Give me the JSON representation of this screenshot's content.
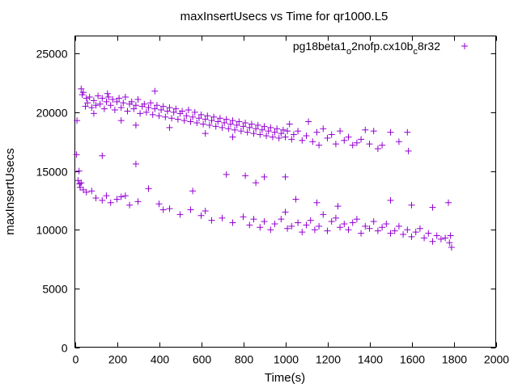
{
  "chart_data": {
    "type": "scatter",
    "title": "maxInsertUsecs vs Time for qr1000.L5",
    "xlabel": "Time(s)",
    "ylabel": "maxInsertUsecs",
    "xlim": [
      0,
      2000
    ],
    "ylim": [
      0,
      26500
    ],
    "xticks": [
      0,
      200,
      400,
      600,
      800,
      1000,
      1200,
      1400,
      1600,
      1800,
      2000
    ],
    "yticks": [
      0,
      5000,
      10000,
      15000,
      20000,
      25000
    ],
    "xtick_labels": [
      "0",
      "200",
      "400",
      "600",
      "800",
      "1000",
      "1200",
      "1400",
      "1600",
      "1800",
      "2000"
    ],
    "ytick_labels": [
      "0",
      "5000",
      "10000",
      "15000",
      "20000",
      "25000"
    ],
    "grid": false,
    "legend_position": "top-right",
    "color": "#9400d3",
    "marker": "plus",
    "series_name": {
      "base": "pg18beta1",
      "sub1": "o",
      "mid": "2nofp.cx10b",
      "sub2": "c",
      "tail": "8r32"
    },
    "series": [
      {
        "name": "pg18beta1_o2nofp.cx10b_c8r32",
        "points": [
          [
            10,
            19300
          ],
          [
            8,
            16400
          ],
          [
            30,
            22000
          ],
          [
            35,
            21500
          ],
          [
            40,
            21700
          ],
          [
            50,
            20500
          ],
          [
            55,
            21200
          ],
          [
            60,
            20800
          ],
          [
            70,
            21300
          ],
          [
            80,
            20400
          ],
          [
            90,
            21000
          ],
          [
            100,
            20600
          ],
          [
            110,
            21400
          ],
          [
            120,
            20700
          ],
          [
            130,
            21200
          ],
          [
            140,
            20300
          ],
          [
            150,
            20900
          ],
          [
            160,
            21300
          ],
          [
            170,
            20600
          ],
          [
            180,
            21100
          ],
          [
            190,
            20200
          ],
          [
            200,
            20900
          ],
          [
            210,
            21200
          ],
          [
            220,
            20400
          ],
          [
            230,
            20800
          ],
          [
            240,
            21300
          ],
          [
            250,
            20100
          ],
          [
            260,
            20700
          ],
          [
            270,
            20900
          ],
          [
            280,
            20300
          ],
          [
            290,
            20600
          ],
          [
            300,
            21100
          ],
          [
            310,
            19900
          ],
          [
            320,
            20500
          ],
          [
            330,
            20700
          ],
          [
            340,
            20000
          ],
          [
            350,
            20400
          ],
          [
            360,
            20800
          ],
          [
            370,
            19800
          ],
          [
            380,
            20300
          ],
          [
            390,
            20600
          ],
          [
            400,
            19700
          ],
          [
            410,
            20200
          ],
          [
            420,
            20500
          ],
          [
            430,
            19600
          ],
          [
            440,
            20100
          ],
          [
            450,
            20400
          ],
          [
            460,
            19500
          ],
          [
            470,
            20000
          ],
          [
            480,
            20300
          ],
          [
            490,
            19400
          ],
          [
            500,
            19900
          ],
          [
            510,
            20100
          ],
          [
            520,
            19300
          ],
          [
            530,
            19700
          ],
          [
            540,
            20200
          ],
          [
            550,
            19200
          ],
          [
            560,
            19600
          ],
          [
            570,
            20000
          ],
          [
            580,
            19100
          ],
          [
            590,
            19500
          ],
          [
            600,
            19800
          ],
          [
            610,
            19000
          ],
          [
            620,
            19400
          ],
          [
            630,
            19700
          ],
          [
            640,
            18900
          ],
          [
            650,
            19300
          ],
          [
            660,
            19600
          ],
          [
            670,
            18800
          ],
          [
            680,
            19200
          ],
          [
            690,
            19500
          ],
          [
            700,
            18700
          ],
          [
            710,
            19100
          ],
          [
            720,
            19400
          ],
          [
            730,
            18600
          ],
          [
            740,
            19000
          ],
          [
            750,
            19300
          ],
          [
            760,
            18500
          ],
          [
            770,
            18900
          ],
          [
            780,
            19200
          ],
          [
            790,
            18400
          ],
          [
            800,
            18800
          ],
          [
            810,
            19100
          ],
          [
            820,
            18300
          ],
          [
            830,
            18700
          ],
          [
            840,
            19000
          ],
          [
            850,
            18200
          ],
          [
            860,
            18600
          ],
          [
            870,
            18900
          ],
          [
            880,
            18100
          ],
          [
            890,
            18500
          ],
          [
            900,
            18800
          ],
          [
            910,
            18000
          ],
          [
            920,
            18400
          ],
          [
            930,
            18700
          ],
          [
            940,
            17900
          ],
          [
            950,
            18300
          ],
          [
            960,
            18600
          ],
          [
            970,
            17800
          ],
          [
            980,
            18200
          ],
          [
            990,
            18500
          ],
          [
            1000,
            17900
          ],
          [
            1010,
            18400
          ],
          [
            1020,
            19000
          ],
          [
            1030,
            17700
          ],
          [
            1040,
            18100
          ],
          [
            1060,
            18400
          ],
          [
            1080,
            17600
          ],
          [
            1100,
            18000
          ],
          [
            1110,
            19200
          ],
          [
            1130,
            17500
          ],
          [
            1150,
            18300
          ],
          [
            1160,
            17200
          ],
          [
            1180,
            18600
          ],
          [
            1200,
            17800
          ],
          [
            1220,
            18100
          ],
          [
            1240,
            17300
          ],
          [
            1260,
            18400
          ],
          [
            1280,
            17600
          ],
          [
            1300,
            17900
          ],
          [
            1320,
            17200
          ],
          [
            1340,
            17400
          ],
          [
            1360,
            17700
          ],
          [
            1380,
            18500
          ],
          [
            1400,
            17300
          ],
          [
            1420,
            18400
          ],
          [
            1440,
            16900
          ],
          [
            1460,
            17200
          ],
          [
            1500,
            18300
          ],
          [
            1540,
            17500
          ],
          [
            1580,
            18300
          ],
          [
            1585,
            16700
          ],
          [
            220,
            19300
          ],
          [
            290,
            18900
          ],
          [
            450,
            18700
          ],
          [
            620,
            18200
          ],
          [
            750,
            17900
          ],
          [
            380,
            21800
          ],
          [
            155,
            21600
          ],
          [
            90,
            19900
          ],
          [
            20,
            15000
          ],
          [
            15,
            14200
          ],
          [
            25,
            13600
          ],
          [
            30,
            14000
          ],
          [
            22,
            13900
          ],
          [
            40,
            13400
          ],
          [
            55,
            13200
          ],
          [
            80,
            13300
          ],
          [
            100,
            12700
          ],
          [
            130,
            12500
          ],
          [
            150,
            12900
          ],
          [
            170,
            12300
          ],
          [
            200,
            12600
          ],
          [
            220,
            12800
          ],
          [
            260,
            12100
          ],
          [
            300,
            12400
          ],
          [
            350,
            13500
          ],
          [
            400,
            12200
          ],
          [
            420,
            11700
          ],
          [
            450,
            11800
          ],
          [
            500,
            11300
          ],
          [
            550,
            11700
          ],
          [
            600,
            11200
          ],
          [
            620,
            11600
          ],
          [
            650,
            10800
          ],
          [
            700,
            11000
          ],
          [
            750,
            10600
          ],
          [
            800,
            11100
          ],
          [
            830,
            10400
          ],
          [
            850,
            10900
          ],
          [
            880,
            10200
          ],
          [
            900,
            10700
          ],
          [
            930,
            10000
          ],
          [
            950,
            10500
          ],
          [
            980,
            10900
          ],
          [
            1000,
            11500
          ],
          [
            1010,
            10100
          ],
          [
            1030,
            10300
          ],
          [
            1060,
            10600
          ],
          [
            1080,
            9800
          ],
          [
            1100,
            10400
          ],
          [
            1120,
            10800
          ],
          [
            1140,
            10000
          ],
          [
            1160,
            10300
          ],
          [
            1180,
            11300
          ],
          [
            1200,
            9900
          ],
          [
            1220,
            10700
          ],
          [
            1240,
            11000
          ],
          [
            1260,
            10200
          ],
          [
            1280,
            10500
          ],
          [
            1300,
            10000
          ],
          [
            1320,
            10600
          ],
          [
            1340,
            10900
          ],
          [
            1360,
            9700
          ],
          [
            1380,
            10300
          ],
          [
            1400,
            10100
          ],
          [
            1420,
            10700
          ],
          [
            1440,
            9900
          ],
          [
            1460,
            10200
          ],
          [
            1480,
            10500
          ],
          [
            1500,
            9700
          ],
          [
            1520,
            9900
          ],
          [
            1540,
            10300
          ],
          [
            1560,
            9600
          ],
          [
            1580,
            10000
          ],
          [
            1600,
            9400
          ],
          [
            1620,
            9800
          ],
          [
            1640,
            10100
          ],
          [
            1660,
            9300
          ],
          [
            1680,
            9700
          ],
          [
            1700,
            9000
          ],
          [
            1720,
            9500
          ],
          [
            1740,
            9200
          ],
          [
            1760,
            9300
          ],
          [
            1780,
            8900
          ],
          [
            1790,
            8500
          ],
          [
            1785,
            9500
          ],
          [
            1775,
            12300
          ],
          [
            1700,
            11900
          ],
          [
            1600,
            12100
          ],
          [
            1500,
            12500
          ],
          [
            1250,
            12000
          ],
          [
            1150,
            12300
          ],
          [
            1050,
            12600
          ],
          [
            1000,
            14500
          ],
          [
            900,
            14500
          ],
          [
            860,
            14000
          ],
          [
            720,
            14700
          ],
          [
            810,
            14600
          ],
          [
            560,
            13300
          ],
          [
            240,
            12900
          ],
          [
            130,
            16300
          ],
          [
            290,
            15600
          ]
        ]
      }
    ]
  }
}
